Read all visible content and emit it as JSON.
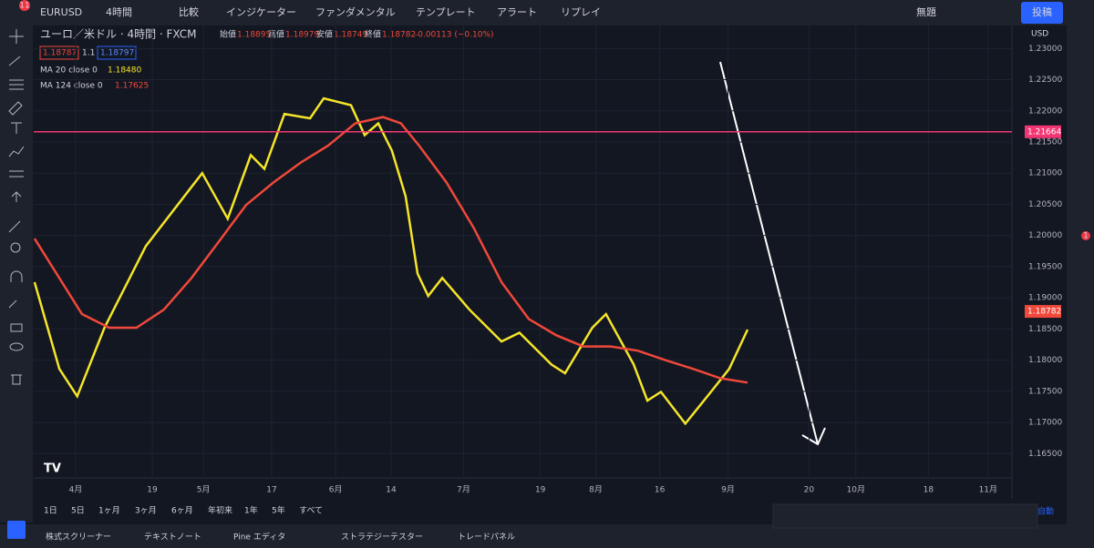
{
  "toolbar": {
    "badge": "11",
    "symbol": "EURUSD",
    "interval": "4時間",
    "compare": "比較",
    "indicators": "インジケーター",
    "fundamentals": "ファンダメンタル",
    "templates": "テンプレート",
    "alert": "アラート",
    "replay": "リプレイ",
    "layout": "無題",
    "publish": "投稿"
  },
  "legend": {
    "title": "ユーロ／米ドル · 4時間 · FXCM",
    "open_label": "始値",
    "open": "1.18895",
    "high_label": "高値",
    "high": "1.18979",
    "low_label": "安値",
    "low": "1.18749",
    "close_label": "終値",
    "close": "1.18782",
    "change": "-0.00113 (−0.10%)",
    "bid": "1.18787",
    "spread": "1.1",
    "ask": "1.18797",
    "ma20": "MA 20 close 0",
    "ma20_value": "1.18480",
    "ma124": "MA 124 close 0",
    "ma124_value": "1.17625"
  },
  "chart_data": {
    "type": "line",
    "currency": "USD",
    "xlim": [
      -9.8,
      219.6
    ],
    "ylim": [
      1.1611,
      1.2337
    ],
    "xticks": [
      {
        "value": 0,
        "label": "4月"
      },
      {
        "value": 18,
        "label": "19"
      },
      {
        "value": 30,
        "label": "5月"
      },
      {
        "value": 46,
        "label": "17"
      },
      {
        "value": 61,
        "label": "6月"
      },
      {
        "value": 74,
        "label": "14"
      },
      {
        "value": 91,
        "label": "7月"
      },
      {
        "value": 109,
        "label": "19"
      },
      {
        "value": 122,
        "label": "8月"
      },
      {
        "value": 137,
        "label": "16"
      },
      {
        "value": 153,
        "label": "9月"
      },
      {
        "value": 172,
        "label": "20"
      },
      {
        "value": 183,
        "label": "10月"
      },
      {
        "value": 200,
        "label": "18"
      },
      {
        "value": 214,
        "label": "11月"
      }
    ],
    "yticks": [
      {
        "value": 1.165,
        "label": "1.16500"
      },
      {
        "value": 1.17,
        "label": "1.17000"
      },
      {
        "value": 1.175,
        "label": "1.17500"
      },
      {
        "value": 1.18,
        "label": "1.18000"
      },
      {
        "value": 1.185,
        "label": "1.18500"
      },
      {
        "value": 1.19,
        "label": "1.19000"
      },
      {
        "value": 1.195,
        "label": "1.19500"
      },
      {
        "value": 1.2,
        "label": "1.20000"
      },
      {
        "value": 1.205,
        "label": "1.20500"
      },
      {
        "value": 1.21,
        "label": "1.21000"
      },
      {
        "value": 1.215,
        "label": "1.21500"
      },
      {
        "value": 1.22,
        "label": "1.22000"
      },
      {
        "value": 1.225,
        "label": "1.22500"
      },
      {
        "value": 1.23,
        "label": "1.23000"
      }
    ],
    "grid": true,
    "series": [
      {
        "name": "MA 20",
        "color": "#f5e52a",
        "x": [
          -9.6,
          -3.8,
          0.4,
          6.8,
          16.5,
          27.2,
          29.7,
          35.7,
          41.1,
          44.3,
          49.0,
          55.0,
          58.2,
          64.6,
          67.8,
          71.0,
          74.2,
          77.4,
          80.2,
          82.7,
          86.0,
          92.4,
          99.9,
          104.1,
          111.6,
          114.8,
          121.2,
          124.4,
          130.9,
          134.1,
          137.3,
          143.0,
          149.0,
          153.3,
          157.6
        ],
        "values": [
          1.1925,
          1.1786,
          1.1742,
          1.1852,
          1.1983,
          1.2078,
          1.21,
          1.2027,
          1.2129,
          1.2107,
          1.2195,
          1.2188,
          1.222,
          1.2209,
          1.2161,
          1.218,
          1.2136,
          1.2063,
          1.1939,
          1.1903,
          1.1932,
          1.1881,
          1.183,
          1.1844,
          1.1793,
          1.1779,
          1.1852,
          1.1874,
          1.1793,
          1.1735,
          1.1749,
          1.1698,
          1.1749,
          1.1786,
          1.1849
        ]
      },
      {
        "name": "MA 124",
        "color": "#f0483a",
        "x": [
          -9.6,
          1.5,
          7.9,
          14.3,
          20.7,
          27.2,
          33.6,
          40.0,
          46.4,
          52.8,
          59.2,
          65.6,
          72.1,
          76.3,
          80.6,
          87.0,
          93.4,
          99.9,
          106.3,
          112.7,
          119.1,
          125.5,
          131.9,
          138.3,
          144.8,
          151.2,
          157.6
        ],
        "values": [
          1.1995,
          1.1874,
          1.1852,
          1.1852,
          1.1881,
          1.1932,
          1.199,
          1.2049,
          1.2085,
          1.2117,
          1.2144,
          1.218,
          1.219,
          1.218,
          1.2144,
          1.2085,
          1.2012,
          1.1925,
          1.1866,
          1.184,
          1.1822,
          1.1822,
          1.1815,
          1.18,
          1.1786,
          1.1771,
          1.1764
        ]
      }
    ],
    "hline": {
      "value": 1.21664,
      "color": "#f23673"
    },
    "last_price": {
      "value": 1.18782,
      "color": "#f0483a"
    }
  },
  "ranges": [
    "1日",
    "5日",
    "1ヶ月",
    "3ヶ月",
    "6ヶ月",
    "年初来",
    "1年",
    "5年",
    "すべて"
  ],
  "auto": "自動",
  "tabs": [
    "株式スクリーナー",
    "テキストノート",
    "Pine エディタ",
    "ストラテジーテスター",
    "トレードパネル"
  ],
  "side_badge": "1"
}
